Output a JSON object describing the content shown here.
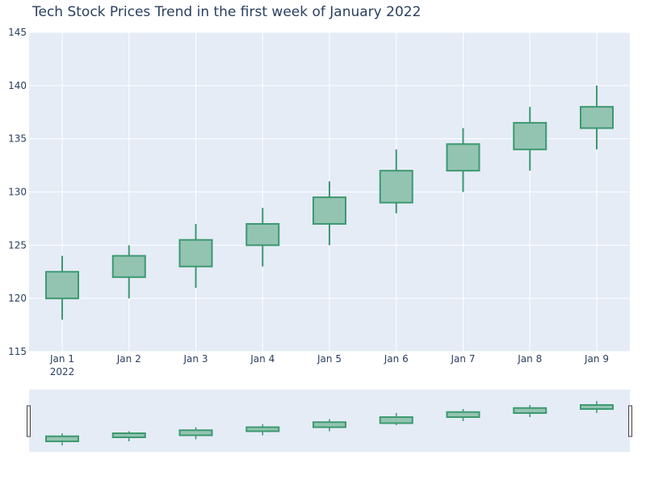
{
  "chart_data": {
    "type": "candlestick",
    "title": "Tech Stock Prices Trend in the first week of January 2022",
    "x_tick_labels": [
      "Jan 1",
      "Jan 2",
      "Jan 3",
      "Jan 4",
      "Jan 5",
      "Jan 6",
      "Jan 7",
      "Jan 8",
      "Jan 9"
    ],
    "x_year_label": "2022",
    "ylim": [
      115,
      145
    ],
    "y_ticks": [
      115,
      120,
      125,
      130,
      135,
      140,
      145
    ],
    "grid": true,
    "has_range_slider": true,
    "colors": {
      "increasing": "#3d9970",
      "increasing_fill": "#93c4b1",
      "plot_bg": "#e5ecf6",
      "grid": "#ffffff",
      "text": "#2a3f5f"
    },
    "candles": [
      {
        "date": "2022-01-01",
        "open": 120.0,
        "high": 124.0,
        "low": 118.0,
        "close": 122.5
      },
      {
        "date": "2022-01-02",
        "open": 122.0,
        "high": 125.0,
        "low": 120.0,
        "close": 124.0
      },
      {
        "date": "2022-01-03",
        "open": 123.0,
        "high": 127.0,
        "low": 121.0,
        "close": 125.5
      },
      {
        "date": "2022-01-04",
        "open": 125.0,
        "high": 128.5,
        "low": 123.0,
        "close": 127.0
      },
      {
        "date": "2022-01-05",
        "open": 127.0,
        "high": 131.0,
        "low": 125.0,
        "close": 129.5
      },
      {
        "date": "2022-01-06",
        "open": 129.0,
        "high": 134.0,
        "low": 128.0,
        "close": 132.0
      },
      {
        "date": "2022-01-07",
        "open": 132.0,
        "high": 136.0,
        "low": 130.0,
        "close": 134.5
      },
      {
        "date": "2022-01-08",
        "open": 134.0,
        "high": 138.0,
        "low": 132.0,
        "close": 136.5
      },
      {
        "date": "2022-01-09",
        "open": 136.0,
        "high": 140.0,
        "low": 134.0,
        "close": 138.0
      }
    ]
  }
}
